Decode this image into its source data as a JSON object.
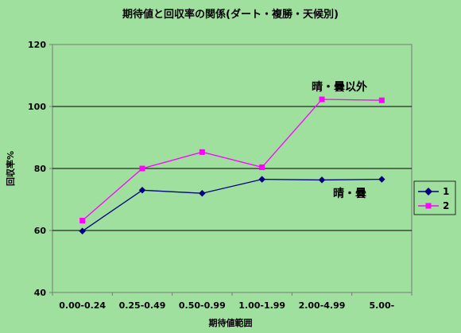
{
  "chart_data": {
    "type": "line",
    "title": "期待値と回収率の関係(ダート・複勝・天候別)",
    "xlabel": "期待値範囲",
    "ylabel": "回収率%",
    "categories": [
      "0.00-0.24",
      "0.25-0.49",
      "0.50-0.99",
      "1.00-1.99",
      "2.00-4.99",
      "5.00-"
    ],
    "ylim": [
      40,
      120
    ],
    "yticks": [
      40,
      60,
      80,
      100,
      120
    ],
    "grid": true,
    "legend": "right",
    "series": [
      {
        "name": "1",
        "color": "#000080",
        "marker": "diamond",
        "values": [
          59.8,
          73.0,
          72.0,
          76.5,
          76.3,
          76.5
        ]
      },
      {
        "name": "2",
        "color": "#ff00ff",
        "marker": "square",
        "values": [
          63.2,
          80.0,
          85.3,
          80.4,
          102.3,
          102.0
        ]
      }
    ],
    "annotations": [
      {
        "text": "晴・曇以外",
        "series": "2"
      },
      {
        "text": "晴・曇",
        "series": "1"
      }
    ]
  }
}
